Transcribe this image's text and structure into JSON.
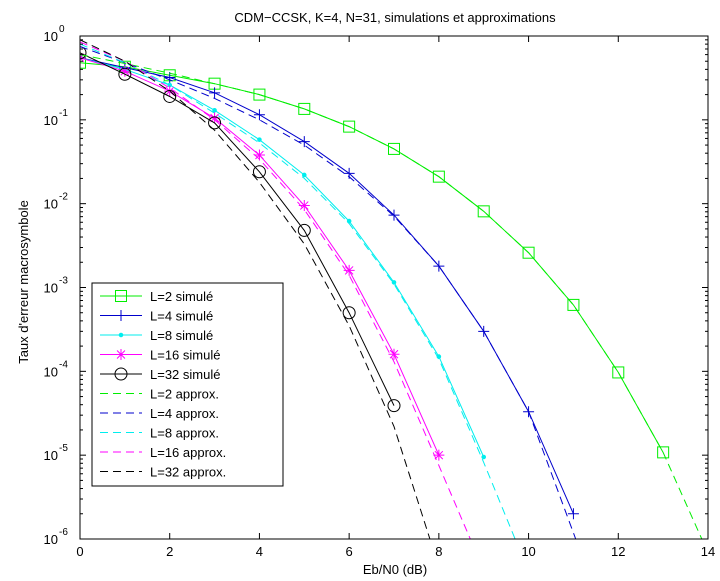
{
  "chart_data": {
    "type": "line",
    "title": "CDM−CCSK, K=4, N=31, simulations et approximations",
    "xlabel": "Eb/N0 (dB)",
    "ylabel": "Taux d'erreur macrosymbole",
    "xlim": [
      0,
      14
    ],
    "ylim": [
      1e-06,
      1
    ],
    "yscale": "log",
    "grid": false,
    "legend_position": "bottom-left",
    "x_ticks": [
      "0",
      "2",
      "4",
      "6",
      "8",
      "10",
      "12",
      "14"
    ],
    "y_tick_exponents": [
      "0",
      "-1",
      "-2",
      "-3",
      "-4",
      "-5",
      "-6"
    ],
    "y_tick_base": "10",
    "series": [
      {
        "name": "L=2 simulé",
        "color": "#00ee00",
        "dash": "solid",
        "marker": "square",
        "x": [
          0,
          1,
          2,
          3,
          4,
          5,
          6,
          7,
          8,
          9,
          10,
          11,
          12,
          13
        ],
        "y": [
          0.48,
          0.43,
          0.34,
          0.27,
          0.2,
          0.135,
          0.083,
          0.045,
          0.021,
          0.0081,
          0.0026,
          0.00062,
          9.7e-05,
          1.08e-05
        ]
      },
      {
        "name": "L=4 simulé",
        "color": "#0000cc",
        "dash": "solid",
        "marker": "plus",
        "x": [
          0,
          1,
          2,
          3,
          4,
          5,
          6,
          7,
          8,
          9,
          10,
          11
        ],
        "y": [
          0.55,
          0.42,
          0.32,
          0.21,
          0.115,
          0.055,
          0.023,
          0.0073,
          0.0018,
          0.0003,
          3.3e-05,
          2e-06
        ]
      },
      {
        "name": "L=8 simulé",
        "color": "#00eeee",
        "dash": "solid",
        "marker": "dot",
        "x": [
          0,
          1,
          2,
          3,
          4,
          5,
          6,
          7,
          8,
          9
        ],
        "y": [
          0.55,
          0.4,
          0.26,
          0.13,
          0.058,
          0.022,
          0.0062,
          0.00115,
          0.00015,
          9.5e-06
        ]
      },
      {
        "name": "L=16 simulé",
        "color": "#ff00ff",
        "dash": "solid",
        "marker": "star",
        "x": [
          0,
          1,
          2,
          3,
          4,
          5,
          6,
          7,
          8
        ],
        "y": [
          0.55,
          0.38,
          0.22,
          0.105,
          0.038,
          0.0095,
          0.0016,
          0.00016,
          1e-05
        ]
      },
      {
        "name": "L=32 simulé",
        "color": "#000000",
        "dash": "solid",
        "marker": "circle",
        "x": [
          0,
          1,
          2,
          3,
          4,
          5,
          6,
          7
        ],
        "y": [
          0.63,
          0.35,
          0.19,
          0.092,
          0.024,
          0.0048,
          0.0005,
          3.9e-05
        ]
      },
      {
        "name": "L=2 approx.",
        "color": "#00ee00",
        "dash": "dashed",
        "marker": "none",
        "x": [
          0,
          1,
          2,
          3,
          4,
          5,
          6,
          7,
          8,
          9,
          10,
          11,
          12,
          13,
          13.9
        ],
        "y": [
          0.6,
          0.47,
          0.36,
          0.27,
          0.2,
          0.135,
          0.083,
          0.045,
          0.021,
          0.0081,
          0.0026,
          0.00062,
          9.7e-05,
          1.08e-05,
          9e-07
        ]
      },
      {
        "name": "L=4 approx.",
        "color": "#0000cc",
        "dash": "dashed",
        "marker": "none",
        "x": [
          0,
          1,
          2,
          3,
          4,
          5,
          6,
          7,
          8,
          9,
          10,
          11.05
        ],
        "y": [
          0.75,
          0.48,
          0.3,
          0.18,
          0.1,
          0.05,
          0.021,
          0.0071,
          0.0018,
          0.0003,
          3.3e-05,
          1e-06
        ]
      },
      {
        "name": "L=8 approx.",
        "color": "#00eeee",
        "dash": "dashed",
        "marker": "none",
        "x": [
          0,
          1,
          2,
          3,
          4,
          5,
          6,
          7,
          8,
          9,
          9.7
        ],
        "y": [
          0.8,
          0.48,
          0.26,
          0.12,
          0.053,
          0.02,
          0.0058,
          0.0011,
          0.00014,
          8.2e-06,
          1e-06
        ]
      },
      {
        "name": "L=16 approx.",
        "color": "#ff00ff",
        "dash": "dashed",
        "marker": "none",
        "x": [
          0,
          1,
          2,
          3,
          4,
          5,
          6,
          7,
          8,
          8.7
        ],
        "y": [
          0.85,
          0.5,
          0.24,
          0.1,
          0.034,
          0.0085,
          0.0014,
          0.00013,
          7.5e-06,
          1e-06
        ]
      },
      {
        "name": "L=32 approx.",
        "color": "#000000",
        "dash": "dashed",
        "marker": "none",
        "x": [
          0,
          1,
          2,
          3,
          4,
          5,
          6,
          7,
          7.8
        ],
        "y": [
          0.9,
          0.5,
          0.22,
          0.075,
          0.018,
          0.0033,
          0.00035,
          2.2e-05,
          1e-06
        ]
      }
    ]
  }
}
